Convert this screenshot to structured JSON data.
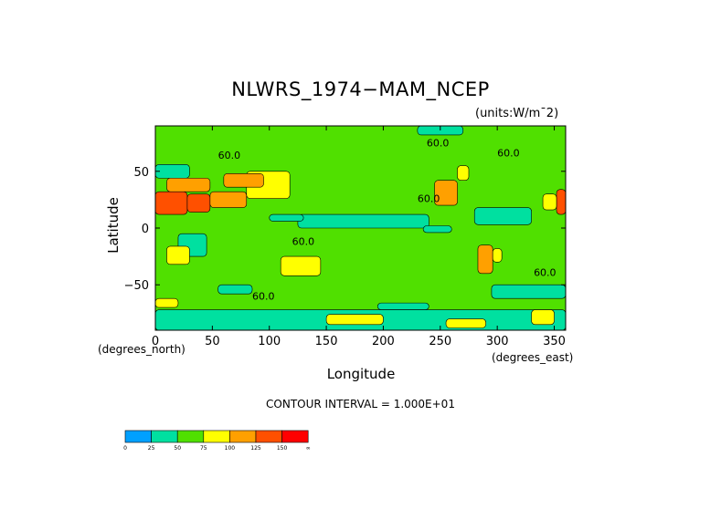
{
  "chart_data": {
    "type": "heatmap",
    "title": "NLWRS_1974−MAM_NCEP",
    "units": "(units:W/m¯2)",
    "xlabel": "Longitude",
    "ylabel": "Latitude",
    "x_unit_label": "(degrees_north)",
    "x_unit_label_right": "(degrees_east)",
    "xlim": [
      0,
      360
    ],
    "ylim": [
      -90,
      90
    ],
    "x_ticks": [
      0,
      50,
      100,
      150,
      200,
      250,
      300,
      350
    ],
    "y_ticks": [
      50,
      0,
      -50
    ],
    "contour_interval_text": "CONTOUR INTERVAL = 1.000E+01",
    "contour_labels": [
      {
        "x": 55,
        "y": 61,
        "text": "60.0"
      },
      {
        "x": 230,
        "y": 23,
        "text": "60.0"
      },
      {
        "x": 120,
        "y": -15,
        "text": "60.0"
      },
      {
        "x": 85,
        "y": -63,
        "text": "60.0"
      },
      {
        "x": 332,
        "y": -42,
        "text": "60.0"
      },
      {
        "x": 238,
        "y": 72,
        "text": "60.0"
      },
      {
        "x": 300,
        "y": 63,
        "text": "60.0"
      }
    ],
    "colorbar": {
      "levels": [
        "0",
        "25",
        "50",
        "75",
        "100",
        "125",
        "150",
        "∞"
      ],
      "colors": [
        "#00a0ff",
        "#00e0a0",
        "#50e000",
        "#ffff00",
        "#ffa000",
        "#ff5000",
        "#ff0000"
      ]
    },
    "regions": [
      {
        "lon": [
          0,
          360
        ],
        "lat": [
          -90,
          90
        ],
        "value": 65
      },
      {
        "lon": [
          125,
          240
        ],
        "lat": [
          0,
          12
        ],
        "value": 40
      },
      {
        "lon": [
          100,
          130
        ],
        "lat": [
          6,
          12
        ],
        "value": 40
      },
      {
        "lon": [
          280,
          330
        ],
        "lat": [
          3,
          18
        ],
        "value": 40
      },
      {
        "lon": [
          235,
          260
        ],
        "lat": [
          -4,
          2
        ],
        "value": 40
      },
      {
        "lon": [
          20,
          45
        ],
        "lat": [
          -25,
          -5
        ],
        "value": 40
      },
      {
        "lon": [
          230,
          270
        ],
        "lat": [
          82,
          90
        ],
        "value": 40
      },
      {
        "lon": [
          295,
          360
        ],
        "lat": [
          -62,
          -50
        ],
        "value": 40
      },
      {
        "lon": [
          195,
          240
        ],
        "lat": [
          -72,
          -66
        ],
        "value": 40
      },
      {
        "lon": [
          0,
          30
        ],
        "lat": [
          44,
          56
        ],
        "value": 40
      },
      {
        "lon": [
          55,
          85
        ],
        "lat": [
          -58,
          -50
        ],
        "value": 40
      },
      {
        "lon": [
          0,
          360
        ],
        "lat": [
          -90,
          -72
        ],
        "value": 40
      },
      {
        "lon": [
          0,
          28
        ],
        "lat": [
          12,
          32
        ],
        "value": 145
      },
      {
        "lon": [
          28,
          48
        ],
        "lat": [
          14,
          30
        ],
        "value": 130
      },
      {
        "lon": [
          48,
          80
        ],
        "lat": [
          18,
          32
        ],
        "value": 110
      },
      {
        "lon": [
          10,
          48
        ],
        "lat": [
          32,
          44
        ],
        "value": 100
      },
      {
        "lon": [
          80,
          118
        ],
        "lat": [
          26,
          50
        ],
        "value": 95
      },
      {
        "lon": [
          60,
          95
        ],
        "lat": [
          36,
          48
        ],
        "value": 115
      },
      {
        "lon": [
          245,
          265
        ],
        "lat": [
          20,
          42
        ],
        "value": 105
      },
      {
        "lon": [
          352,
          360
        ],
        "lat": [
          12,
          34
        ],
        "value": 140
      },
      {
        "lon": [
          340,
          352
        ],
        "lat": [
          16,
          30
        ],
        "value": 95
      },
      {
        "lon": [
          110,
          145
        ],
        "lat": [
          -42,
          -25
        ],
        "value": 90
      },
      {
        "lon": [
          10,
          30
        ],
        "lat": [
          -32,
          -16
        ],
        "value": 85
      },
      {
        "lon": [
          283,
          296
        ],
        "lat": [
          -40,
          -15
        ],
        "value": 115
      },
      {
        "lon": [
          296,
          304
        ],
        "lat": [
          -30,
          -18
        ],
        "value": 85
      },
      {
        "lon": [
          330,
          350
        ],
        "lat": [
          -85,
          -72
        ],
        "value": 90
      },
      {
        "lon": [
          150,
          200
        ],
        "lat": [
          -85,
          -76
        ],
        "value": 85
      },
      {
        "lon": [
          255,
          290
        ],
        "lat": [
          -88,
          -80
        ],
        "value": 90
      },
      {
        "lon": [
          0,
          20
        ],
        "lat": [
          -70,
          -62
        ],
        "value": 85
      },
      {
        "lon": [
          265,
          275
        ],
        "lat": [
          42,
          55
        ],
        "value": 80
      }
    ]
  }
}
